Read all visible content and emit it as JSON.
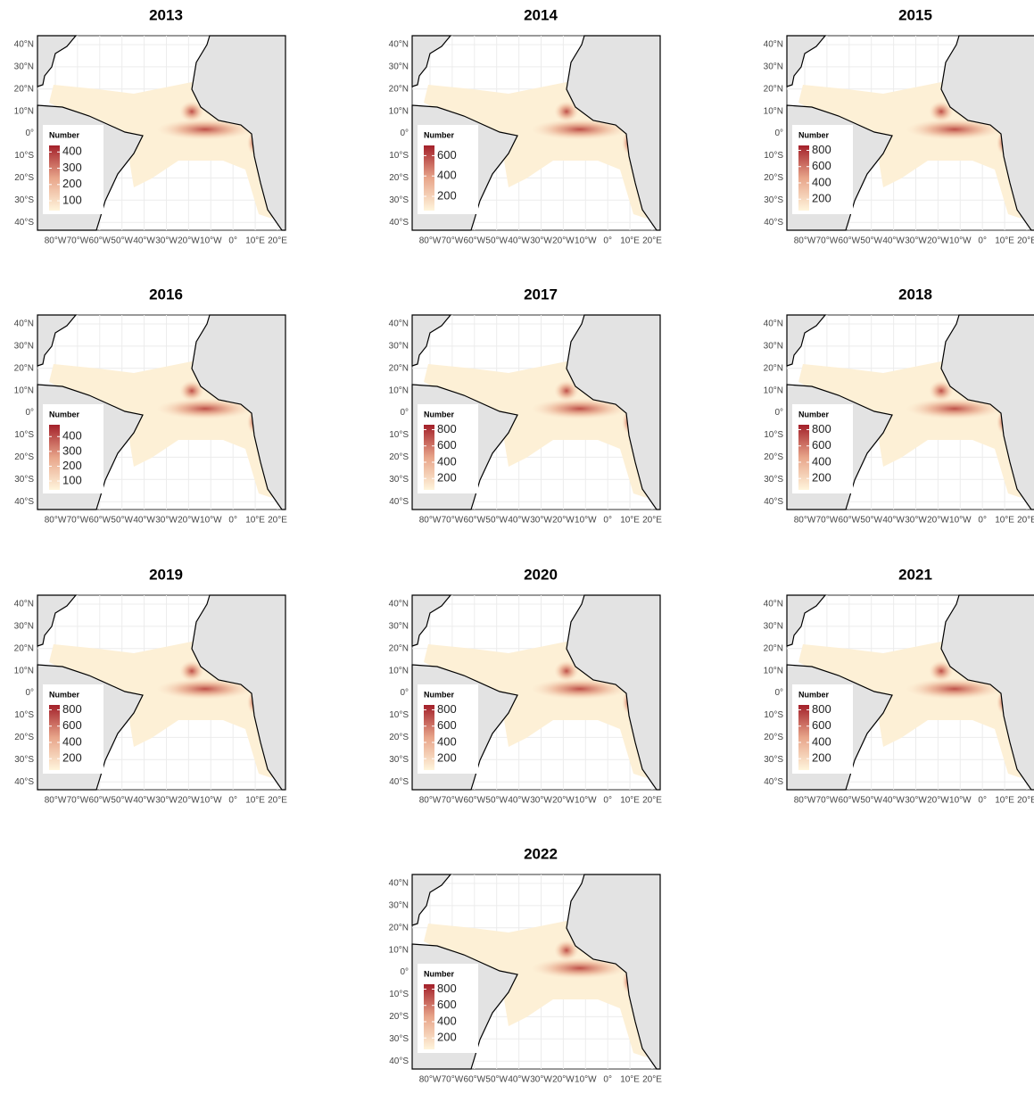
{
  "axes": {
    "x_labels": [
      "80°W",
      "70°W",
      "60°W",
      "50°W",
      "40°W",
      "30°W",
      "20°W",
      "10°W",
      "0°",
      "10°E",
      "20°E"
    ],
    "y_labels": [
      "40°N",
      "30°N",
      "20°N",
      "10°N",
      "0°",
      "10°S",
      "20°S",
      "30°S",
      "40°S"
    ]
  },
  "panels": [
    {
      "title": "2013",
      "legend": {
        "title": "Number",
        "range": [
          40,
          440
        ],
        "ticks": [
          100,
          200,
          300,
          400
        ]
      }
    },
    {
      "title": "2014",
      "legend": {
        "title": "Number",
        "range": [
          60,
          700
        ],
        "ticks": [
          200,
          400,
          600
        ]
      }
    },
    {
      "title": "2015",
      "legend": {
        "title": "Number",
        "range": [
          60,
          860
        ],
        "ticks": [
          200,
          400,
          600,
          800
        ]
      }
    },
    {
      "title": "2016",
      "legend": {
        "title": "Number",
        "range": [
          40,
          480
        ],
        "ticks": [
          100,
          200,
          300,
          400
        ]
      }
    },
    {
      "title": "2017",
      "legend": {
        "title": "Number",
        "range": [
          60,
          860
        ],
        "ticks": [
          200,
          400,
          600,
          800
        ]
      }
    },
    {
      "title": "2018",
      "legend": {
        "title": "Number",
        "range": [
          60,
          860
        ],
        "ticks": [
          200,
          400,
          600,
          800
        ]
      }
    },
    {
      "title": "2019",
      "legend": {
        "title": "Number",
        "range": [
          60,
          860
        ],
        "ticks": [
          200,
          400,
          600,
          800
        ]
      }
    },
    {
      "title": "2020",
      "legend": {
        "title": "Number",
        "range": [
          60,
          860
        ],
        "ticks": [
          200,
          400,
          600,
          800
        ]
      }
    },
    {
      "title": "2021",
      "legend": {
        "title": "Number",
        "range": [
          60,
          860
        ],
        "ticks": [
          200,
          400,
          600,
          800
        ]
      }
    },
    {
      "title": "2022",
      "legend": {
        "title": "Number",
        "range": [
          60,
          860
        ],
        "ticks": [
          200,
          400,
          600,
          800
        ]
      }
    }
  ]
}
